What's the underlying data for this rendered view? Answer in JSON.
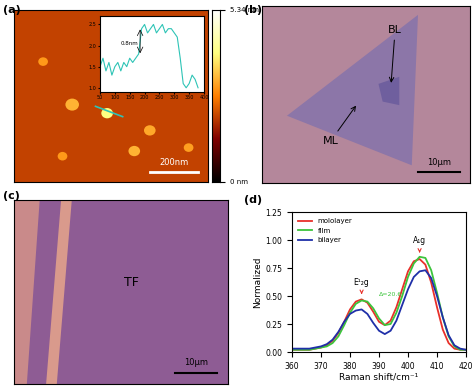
{
  "chart_data": [
    {
      "type": "image",
      "label": "(a)",
      "scale_bar": "200nm",
      "colorbar": {
        "range": [
          0,
          5.34
        ],
        "ticks": [
          {
            "value": 0,
            "label": "0 nm"
          },
          {
            "value": 5.34,
            "label": "5.34 nm"
          }
        ]
      }
    },
    {
      "type": "line",
      "color": "#2ec4b6",
      "annotation": "0.8nm",
      "x": [
        50,
        60,
        70,
        80,
        90,
        100,
        110,
        120,
        130,
        140,
        150,
        160,
        170,
        180,
        190,
        200,
        210,
        220,
        230,
        240,
        250,
        260,
        270,
        280,
        290,
        300,
        310,
        320,
        330,
        340,
        350,
        360,
        370,
        380
      ],
      "values": [
        1.5,
        1.7,
        1.4,
        1.6,
        1.3,
        1.5,
        1.6,
        1.4,
        1.6,
        1.5,
        1.7,
        1.6,
        1.7,
        1.8,
        2.4,
        2.5,
        2.3,
        2.4,
        2.5,
        2.3,
        2.4,
        2.5,
        2.3,
        2.4,
        2.4,
        2.3,
        2.2,
        1.7,
        1.1,
        1.0,
        1.1,
        1.3,
        1.2,
        1.0
      ],
      "xlim": [
        50,
        400
      ],
      "xticks": [
        50,
        100,
        150,
        200,
        250,
        300,
        350,
        400
      ],
      "ylim": [
        0.9,
        2.7
      ],
      "yticks": [
        {
          "value": 1.0,
          "label": "1.0"
        },
        {
          "value": 1.5,
          "label": "1.5"
        },
        {
          "value": 2.0,
          "label": "2.0"
        },
        {
          "value": 2.5,
          "label": "2.5"
        }
      ]
    },
    {
      "type": "image",
      "label": "(b)",
      "scale_bar": "10μm",
      "annotations": [
        "BL",
        "ML"
      ]
    },
    {
      "type": "image",
      "label": "(c)",
      "scale_bar": "10μm",
      "annotations": [
        "TF"
      ]
    },
    {
      "type": "line",
      "label": "(d)",
      "xlabel": "Raman shift/cm⁻¹",
      "ylabel": "Normalized",
      "legend": "upper left",
      "annotations": [
        "E¹₂g",
        "A₁g",
        "Δ=20.6"
      ],
      "x": [
        360,
        362,
        364,
        366,
        368,
        370,
        372,
        374,
        376,
        378,
        380,
        382,
        384,
        386,
        388,
        390,
        392,
        394,
        396,
        398,
        400,
        402,
        404,
        406,
        408,
        410,
        412,
        414,
        416,
        418,
        420
      ],
      "series": [
        {
          "name": "mololayer",
          "color": "#e8302a",
          "values": [
            0.02,
            0.02,
            0.02,
            0.02,
            0.03,
            0.04,
            0.06,
            0.1,
            0.17,
            0.27,
            0.38,
            0.45,
            0.47,
            0.44,
            0.36,
            0.27,
            0.24,
            0.28,
            0.4,
            0.56,
            0.72,
            0.81,
            0.83,
            0.78,
            0.62,
            0.4,
            0.2,
            0.08,
            0.03,
            0.02,
            0.02
          ]
        },
        {
          "name": "film",
          "color": "#3cc43c",
          "values": [
            0.02,
            0.02,
            0.02,
            0.02,
            0.03,
            0.04,
            0.05,
            0.08,
            0.14,
            0.24,
            0.35,
            0.43,
            0.46,
            0.45,
            0.39,
            0.3,
            0.24,
            0.25,
            0.35,
            0.5,
            0.67,
            0.79,
            0.85,
            0.84,
            0.73,
            0.53,
            0.31,
            0.14,
            0.05,
            0.02,
            0.02
          ]
        },
        {
          "name": "bilayer",
          "color": "#1f2fa8",
          "values": [
            0.03,
            0.03,
            0.03,
            0.03,
            0.04,
            0.05,
            0.07,
            0.11,
            0.18,
            0.27,
            0.34,
            0.37,
            0.38,
            0.34,
            0.26,
            0.19,
            0.16,
            0.19,
            0.28,
            0.42,
            0.56,
            0.67,
            0.72,
            0.73,
            0.66,
            0.5,
            0.31,
            0.15,
            0.06,
            0.03,
            0.02
          ]
        }
      ],
      "xlim": [
        360,
        420
      ],
      "xticks": [
        360,
        370,
        380,
        390,
        400,
        410,
        420
      ],
      "ylim": [
        0,
        1.25
      ],
      "yticks": [
        {
          "value": 0,
          "label": "0.00"
        },
        {
          "value": 0.25,
          "label": "0.25"
        },
        {
          "value": 0.5,
          "label": "0.50"
        },
        {
          "value": 0.75,
          "label": "0.75"
        },
        {
          "value": 1.0,
          "label": "1.00"
        },
        {
          "value": 1.25,
          "label": "1.25"
        }
      ]
    }
  ]
}
